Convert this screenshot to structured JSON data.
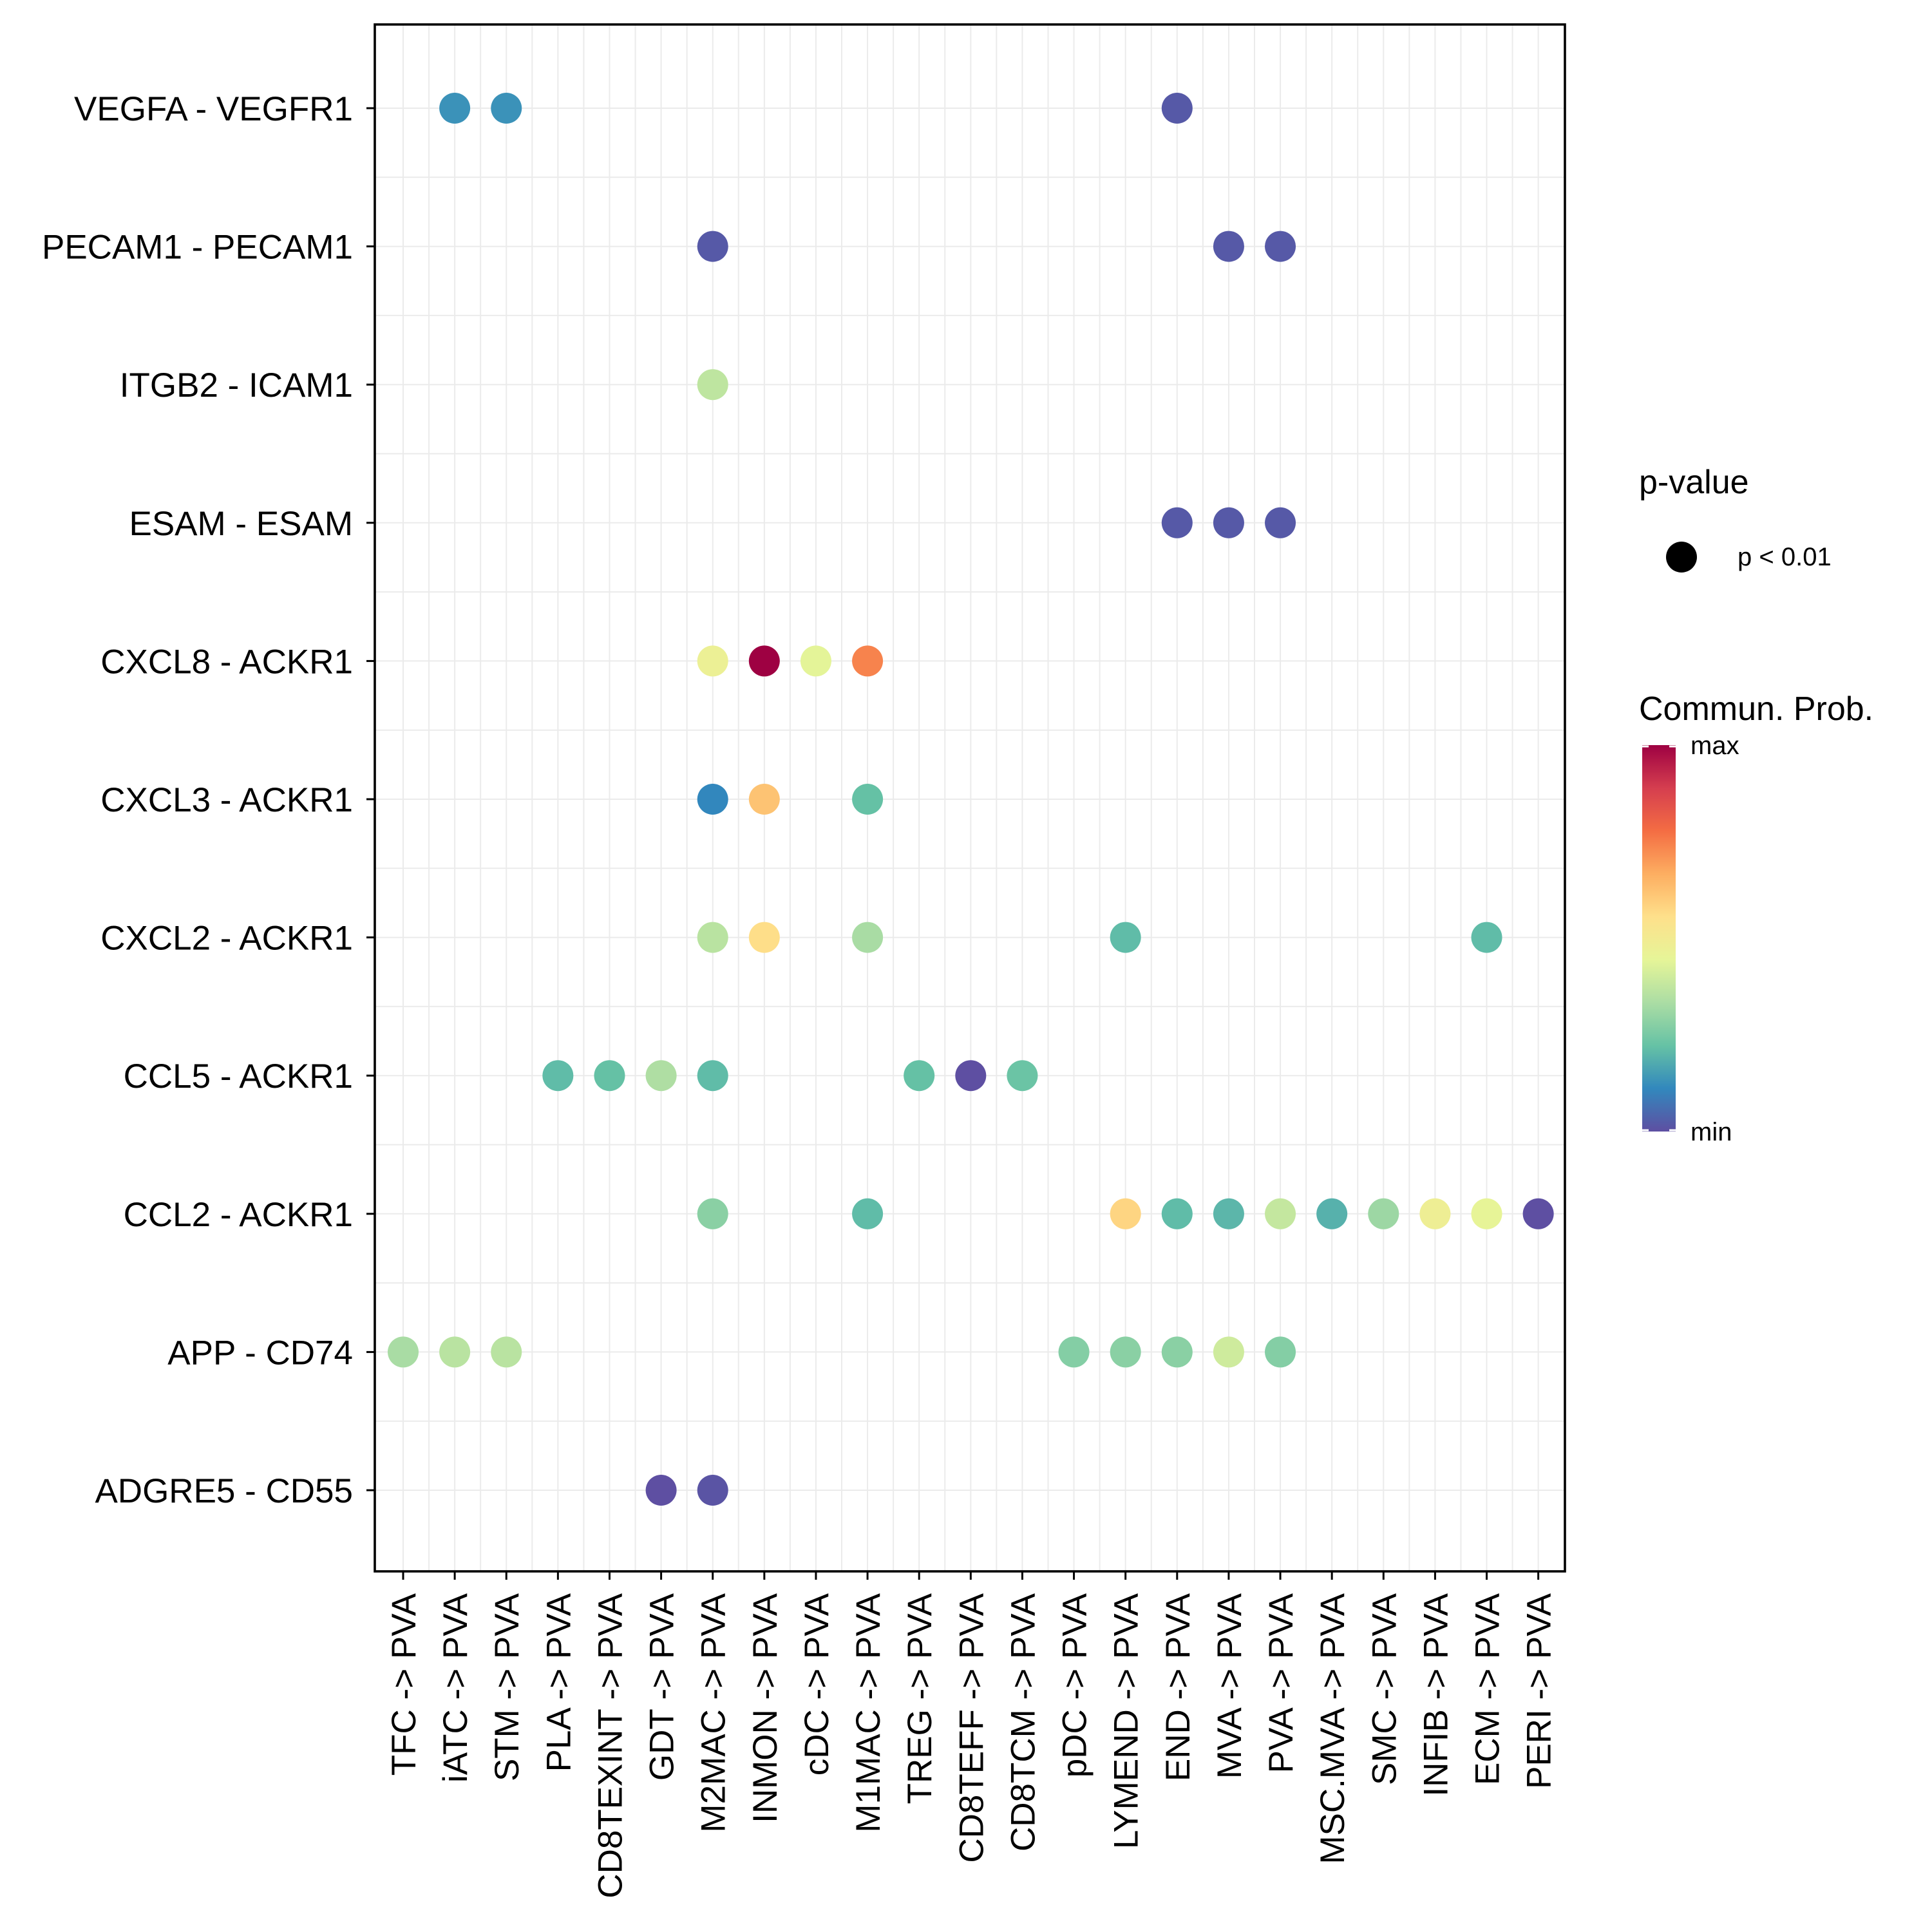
{
  "chart_data": {
    "type": "dotplot",
    "x_categories": [
      "TFC -> PVA",
      "iATC -> PVA",
      "STM -> PVA",
      "PLA -> PVA",
      "CD8TEXINT -> PVA",
      "GDT -> PVA",
      "M2MAC -> PVA",
      "INMON -> PVA",
      "cDC -> PVA",
      "M1MAC -> PVA",
      "TREG -> PVA",
      "CD8TEFF -> PVA",
      "CD8TCM -> PVA",
      "pDC -> PVA",
      "LYMEND -> PVA",
      "END -> PVA",
      "MVA -> PVA",
      "PVA -> PVA",
      "MSC.MVA -> PVA",
      "SMC -> PVA",
      "INFIB -> PVA",
      "ECM -> PVA",
      "PERI -> PVA"
    ],
    "y_categories": [
      "VEGFA - VEGFR1",
      "PECAM1 - PECAM1",
      "ITGB2 - ICAM1",
      "ESAM - ESAM",
      "CXCL8 - ACKR1",
      "CXCL3 - ACKR1",
      "CXCL2 - ACKR1",
      "CCL5 - ACKR1",
      "CCL2 - ACKR1",
      "APP - CD74",
      "ADGRE5 - CD55"
    ],
    "points": [
      {
        "x": "iATC -> PVA",
        "y": "VEGFA - VEGFR1",
        "prob": 0.13
      },
      {
        "x": "STM -> PVA",
        "y": "VEGFA - VEGFR1",
        "prob": 0.13
      },
      {
        "x": "END -> PVA",
        "y": "VEGFA - VEGFR1",
        "prob": 0.02
      },
      {
        "x": "M2MAC -> PVA",
        "y": "PECAM1 - PECAM1",
        "prob": 0.02
      },
      {
        "x": "MVA -> PVA",
        "y": "PECAM1 - PECAM1",
        "prob": 0.02
      },
      {
        "x": "PVA -> PVA",
        "y": "PECAM1 - PECAM1",
        "prob": 0.02
      },
      {
        "x": "M2MAC -> PVA",
        "y": "ITGB2 - ICAM1",
        "prob": 0.37
      },
      {
        "x": "END -> PVA",
        "y": "ESAM - ESAM",
        "prob": 0.02
      },
      {
        "x": "MVA -> PVA",
        "y": "ESAM - ESAM",
        "prob": 0.02
      },
      {
        "x": "PVA -> PVA",
        "y": "ESAM - ESAM",
        "prob": 0.02
      },
      {
        "x": "M2MAC -> PVA",
        "y": "CXCL8 - ACKR1",
        "prob": 0.47
      },
      {
        "x": "INMON -> PVA",
        "y": "CXCL8 - ACKR1",
        "prob": 1.0
      },
      {
        "x": "cDC -> PVA",
        "y": "CXCL8 - ACKR1",
        "prob": 0.44
      },
      {
        "x": "M1MAC -> PVA",
        "y": "CXCL8 - ACKR1",
        "prob": 0.74
      },
      {
        "x": "M2MAC -> PVA",
        "y": "CXCL3 - ACKR1",
        "prob": 0.11
      },
      {
        "x": "INMON -> PVA",
        "y": "CXCL3 - ACKR1",
        "prob": 0.62
      },
      {
        "x": "M1MAC -> PVA",
        "y": "CXCL3 - ACKR1",
        "prob": 0.22
      },
      {
        "x": "M2MAC -> PVA",
        "y": "CXCL2 - ACKR1",
        "prob": 0.36
      },
      {
        "x": "INMON -> PVA",
        "y": "CXCL2 - ACKR1",
        "prob": 0.56
      },
      {
        "x": "M1MAC -> PVA",
        "y": "CXCL2 - ACKR1",
        "prob": 0.33
      },
      {
        "x": "LYMEND -> PVA",
        "y": "CXCL2 - ACKR1",
        "prob": 0.21
      },
      {
        "x": "ECM -> PVA",
        "y": "CXCL2 - ACKR1",
        "prob": 0.21
      },
      {
        "x": "PLA -> PVA",
        "y": "CCL5 - ACKR1",
        "prob": 0.21
      },
      {
        "x": "CD8TEXINT -> PVA",
        "y": "CCL5 - ACKR1",
        "prob": 0.22
      },
      {
        "x": "GDT -> PVA",
        "y": "CCL5 - ACKR1",
        "prob": 0.34
      },
      {
        "x": "M2MAC -> PVA",
        "y": "CCL5 - ACKR1",
        "prob": 0.21
      },
      {
        "x": "TREG -> PVA",
        "y": "CCL5 - ACKR1",
        "prob": 0.22
      },
      {
        "x": "CD8TEFF -> PVA",
        "y": "CCL5 - ACKR1",
        "prob": 0.0
      },
      {
        "x": "CD8TCM -> PVA",
        "y": "CCL5 - ACKR1",
        "prob": 0.23
      },
      {
        "x": "M2MAC -> PVA",
        "y": "CCL2 - ACKR1",
        "prob": 0.28
      },
      {
        "x": "M1MAC -> PVA",
        "y": "CCL2 - ACKR1",
        "prob": 0.21
      },
      {
        "x": "LYMEND -> PVA",
        "y": "CCL2 - ACKR1",
        "prob": 0.58
      },
      {
        "x": "END -> PVA",
        "y": "CCL2 - ACKR1",
        "prob": 0.21
      },
      {
        "x": "MVA -> PVA",
        "y": "CCL2 - ACKR1",
        "prob": 0.2
      },
      {
        "x": "PVA -> PVA",
        "y": "CCL2 - ACKR1",
        "prob": 0.38
      },
      {
        "x": "MSC.MVA -> PVA",
        "y": "CCL2 - ACKR1",
        "prob": 0.19
      },
      {
        "x": "SMC -> PVA",
        "y": "CCL2 - ACKR1",
        "prob": 0.31
      },
      {
        "x": "INFIB -> PVA",
        "y": "CCL2 - ACKR1",
        "prob": 0.48
      },
      {
        "x": "ECM -> PVA",
        "y": "CCL2 - ACKR1",
        "prob": 0.45
      },
      {
        "x": "PERI -> PVA",
        "y": "CCL2 - ACKR1",
        "prob": 0.0
      },
      {
        "x": "TFC -> PVA",
        "y": "APP - CD74",
        "prob": 0.33
      },
      {
        "x": "iATC -> PVA",
        "y": "APP - CD74",
        "prob": 0.36
      },
      {
        "x": "STM -> PVA",
        "y": "APP - CD74",
        "prob": 0.36
      },
      {
        "x": "pDC -> PVA",
        "y": "APP - CD74",
        "prob": 0.27
      },
      {
        "x": "LYMEND -> PVA",
        "y": "APP - CD74",
        "prob": 0.28
      },
      {
        "x": "END -> PVA",
        "y": "APP - CD74",
        "prob": 0.28
      },
      {
        "x": "MVA -> PVA",
        "y": "APP - CD74",
        "prob": 0.4
      },
      {
        "x": "PVA -> PVA",
        "y": "APP - CD74",
        "prob": 0.27
      },
      {
        "x": "GDT -> PVA",
        "y": "ADGRE5 - CD55",
        "prob": -0.03
      },
      {
        "x": "M2MAC -> PVA",
        "y": "ADGRE5 - CD55",
        "prob": 0.01
      }
    ],
    "size_legend": {
      "title": "p-value",
      "label": "p < 0.01"
    },
    "color_legend": {
      "title": "Commun. Prob.",
      "max_label": "max",
      "min_label": "min",
      "palette": [
        "#5e4fa2",
        "#3288bd",
        "#66c2a5",
        "#abdda4",
        "#e6f598",
        "#fee08b",
        "#fdae61",
        "#f46d43",
        "#d53e4f",
        "#9e0142"
      ]
    }
  }
}
